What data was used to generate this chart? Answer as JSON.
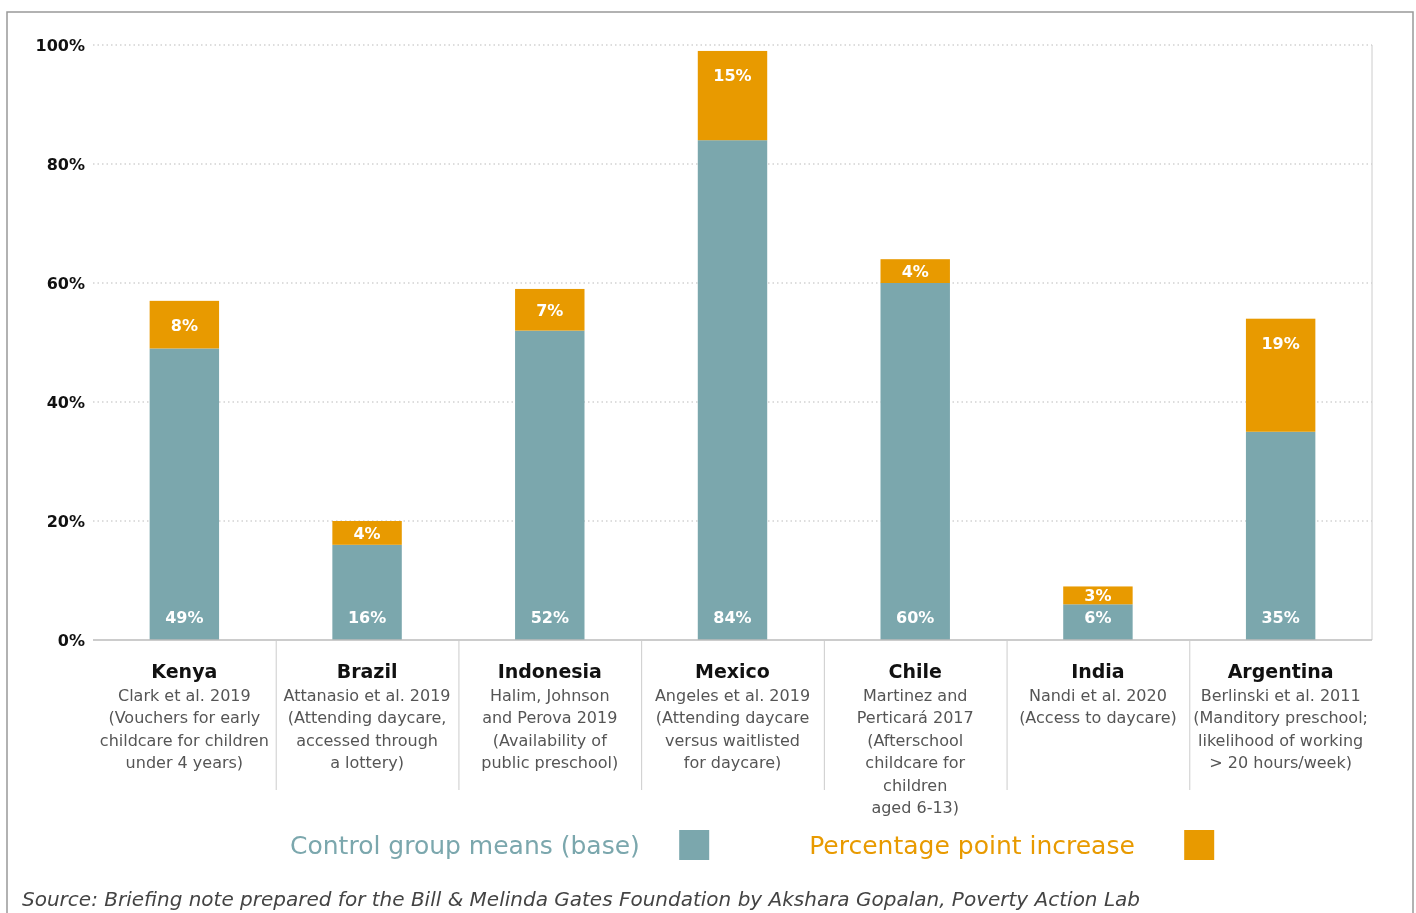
{
  "chart_data": {
    "type": "bar",
    "stacked": true,
    "categories": [
      "Kenya\nClark et al. 2019\n(Vouchers for early\nchildcare for children\nunder 4 years)",
      "Brazil\nAttanasio et al. 2019\n(Attending daycare,\naccessed through\na lottery)",
      "Indonesia\nHalim, Johnson\nand Perova 2019\n(Availability of\npublic preschool)",
      "Mexico\nAngeles et al. 2019\n(Attending daycare\nversus waitlisted\nfor daycare)",
      "Chile\nMartinez and\nPerticará 2017\n(Afterschool\nchildcare for\nchildren\naged 6-13)",
      "India\nNandi et al. 2020\n(Access to daycare)",
      "Argentina\nBerlinski et al. 2011\n(Manditory preschool;\nlikelihood of working\n> 20 hours/week)"
    ],
    "series": [
      {
        "name": "Control group means (base)",
        "color": "#7ba7ad",
        "values": [
          49,
          16,
          52,
          84,
          60,
          6,
          35
        ],
        "value_labels": [
          "49%",
          "16%",
          "52%",
          "84%",
          "60%",
          "6%",
          "35%"
        ]
      },
      {
        "name": "Percentage point increase",
        "color": "#e89a00",
        "values": [
          8,
          4,
          7,
          15,
          4,
          3,
          19
        ],
        "value_labels": [
          "8%",
          "4%",
          "7%",
          "15%",
          "4%",
          "3%",
          "19%"
        ]
      }
    ],
    "ylim": [
      0,
      100
    ],
    "yticks": [
      {
        "value": 0,
        "label": "0%"
      },
      {
        "value": 20,
        "label": "20%"
      },
      {
        "value": 40,
        "label": "40%"
      },
      {
        "value": 60,
        "label": "60%"
      },
      {
        "value": 80,
        "label": "80%"
      },
      {
        "value": 100,
        "label": "100%"
      }
    ],
    "grid": "y",
    "legend": "bottom",
    "annotations": [
      "Source: Briefing note prepared for the Bill & Melinda Gates Foundation by Akshara Gopalan, Poverty Action Lab"
    ]
  }
}
